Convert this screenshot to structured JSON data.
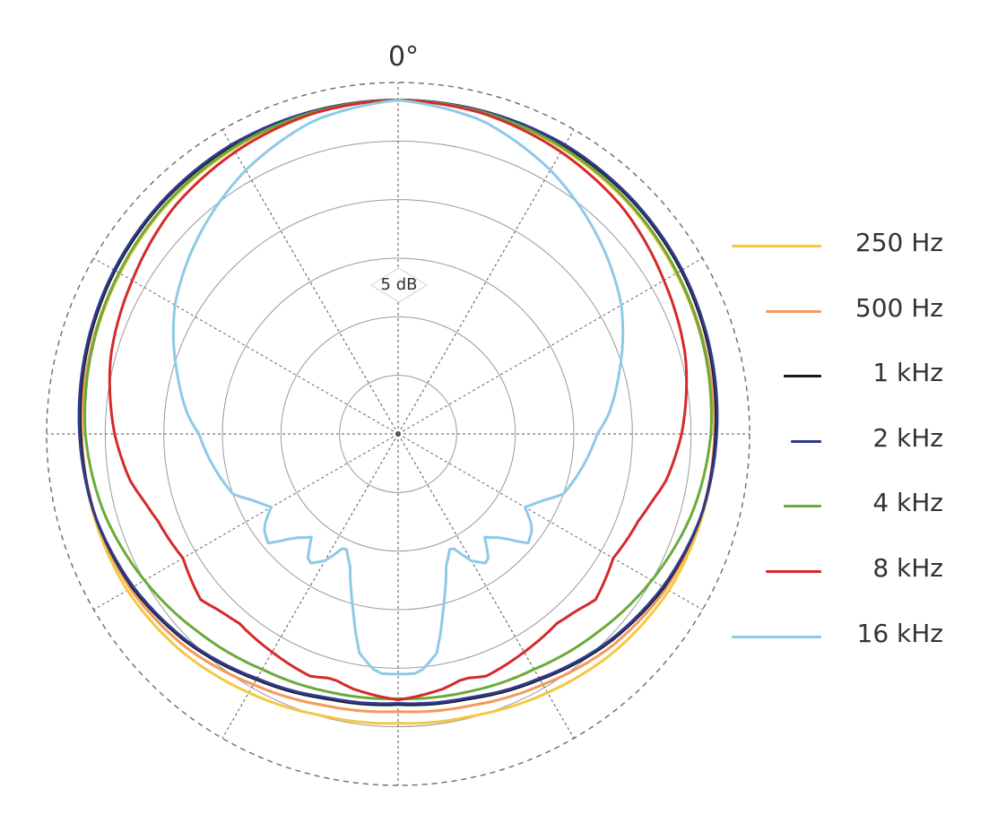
{
  "chart_data": {
    "type": "polar",
    "polar_orientation": "0° at top, symmetric pattern",
    "angle_labels": [
      "0°"
    ],
    "scale_label": "5 dB",
    "rings_db": [
      -25,
      -20,
      -15,
      -10,
      -5,
      0
    ],
    "grid": true,
    "legend_placement": "right",
    "series": [
      {
        "name": "250 Hz",
        "color": "#f5c842",
        "angles_deg": [
          0,
          15,
          30,
          45,
          60,
          75,
          90,
          105,
          120,
          135,
          150,
          165,
          180
        ],
        "values_db": [
          -1.5,
          -1.6,
          -1.9,
          -2.2,
          -2.6,
          -2.9,
          -3.0,
          -3.1,
          -3.3,
          -3.8,
          -4.5,
          -5.1,
          -5.3
        ]
      },
      {
        "name": "500 Hz",
        "color": "#f29a5c",
        "angles_deg": [
          0,
          15,
          30,
          45,
          60,
          75,
          90,
          105,
          120,
          135,
          150,
          165,
          180
        ],
        "values_db": [
          -1.5,
          -1.6,
          -1.8,
          -2.1,
          -2.5,
          -2.8,
          -3.0,
          -3.2,
          -3.6,
          -4.3,
          -5.3,
          -6.0,
          -6.3
        ]
      },
      {
        "name": "1 kHz",
        "color": "#1a1a1a",
        "angles_deg": [
          0,
          15,
          30,
          45,
          60,
          75,
          90,
          105,
          120,
          135,
          150,
          165,
          180
        ],
        "values_db": [
          -1.5,
          -1.5,
          -1.6,
          -1.8,
          -2.1,
          -2.5,
          -2.9,
          -3.2,
          -3.8,
          -4.7,
          -5.8,
          -6.6,
          -6.9
        ]
      },
      {
        "name": "2 kHz",
        "color": "#2e3a8c",
        "angles_deg": [
          0,
          15,
          30,
          45,
          60,
          75,
          90,
          105,
          120,
          135,
          150,
          165,
          180
        ],
        "values_db": [
          -1.5,
          -1.5,
          -1.5,
          -1.7,
          -2.0,
          -2.4,
          -2.8,
          -3.2,
          -3.9,
          -4.8,
          -5.9,
          -6.7,
          -7.0
        ]
      },
      {
        "name": "4 kHz",
        "color": "#6aaa3a",
        "angles_deg": [
          0,
          15,
          30,
          45,
          60,
          75,
          90,
          105,
          120,
          135,
          150,
          165,
          180
        ],
        "values_db": [
          -1.5,
          -1.6,
          -1.8,
          -2.1,
          -2.5,
          -2.9,
          -3.3,
          -4.0,
          -5.0,
          -6.0,
          -6.8,
          -7.2,
          -7.4
        ]
      },
      {
        "name": "8 kHz",
        "color": "#d42a2a",
        "angles_deg": [
          0,
          15,
          30,
          45,
          60,
          75,
          90,
          100,
          105,
          110,
          120,
          130,
          135,
          140,
          150,
          160,
          165,
          170,
          180
        ],
        "values_db": [
          -1.5,
          -1.7,
          -2.2,
          -2.8,
          -3.8,
          -4.6,
          -5.8,
          -6.8,
          -7.6,
          -8.2,
          -8.8,
          -8.0,
          -8.6,
          -8.9,
          -8.5,
          -8.0,
          -8.4,
          -7.9,
          -7.3
        ]
      },
      {
        "name": "16 kHz",
        "color": "#8ecae6",
        "angles_deg": [
          0,
          15,
          30,
          45,
          60,
          75,
          85,
          90,
          100,
          110,
          115,
          120,
          125,
          130,
          135,
          140,
          145,
          150,
          155,
          160,
          165,
          170,
          175,
          180
        ],
        "values_db": [
          -1.5,
          -2.3,
          -4.0,
          -6.0,
          -8.0,
          -10.5,
          -12.0,
          -13.0,
          -14.0,
          -15.0,
          -16.5,
          -17.5,
          -16.0,
          -15.5,
          -17.5,
          -18.5,
          -16.5,
          -17.5,
          -19.5,
          -18.0,
          -15.0,
          -11.0,
          -9.5,
          -9.5
        ]
      }
    ]
  }
}
